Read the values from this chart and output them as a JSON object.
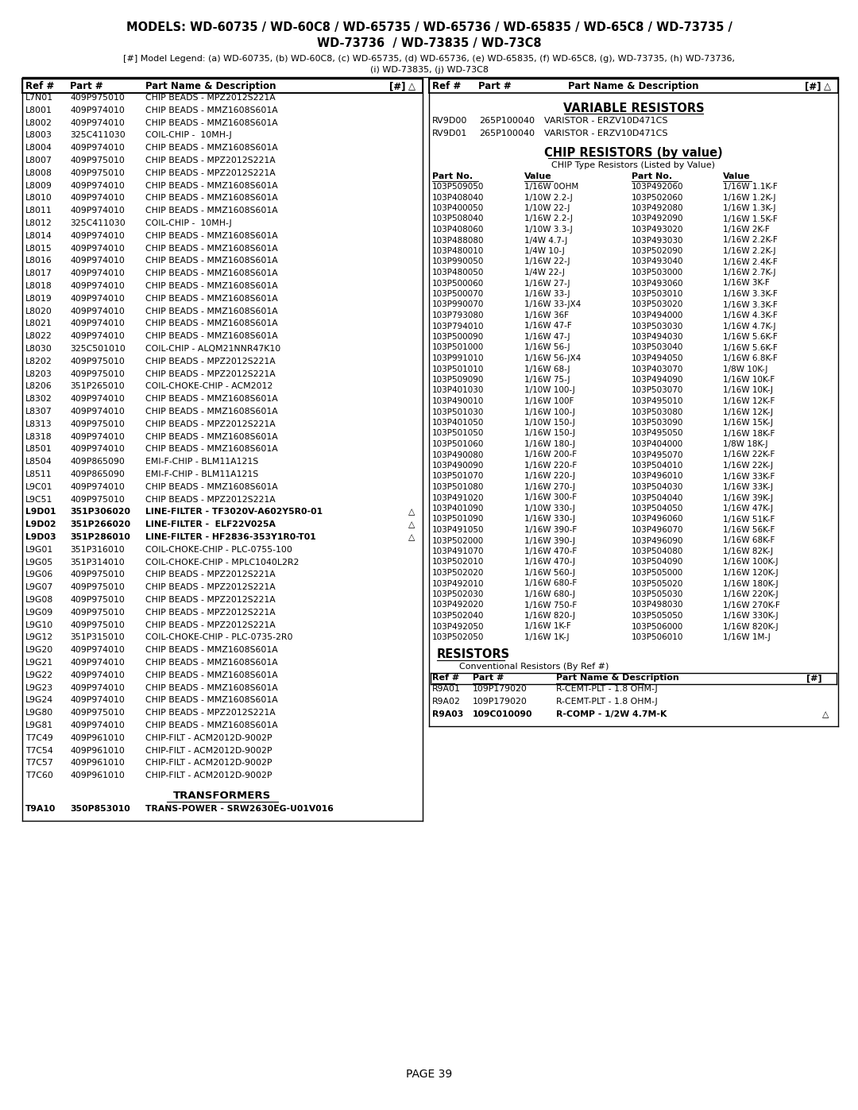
{
  "title_line1": "MODELS: WD-60735 / WD-60C8 / WD-65735 / WD-65736 / WD-65835 / WD-65C8 / WD-73735 /",
  "title_line2": "WD-73736  / WD-73835 / WD-73C8",
  "legend_line": "[#] Model Legend: (a) WD-60735, (b) WD-60C8, (c) WD-65735, (d) WD-65736, (e) WD-65835, (f) WD-65C8, (g), WD-73735, (h) WD-73736,",
  "legend_line2": "(i) WD-73835, (j) WD-73C8",
  "left_rows": [
    [
      "L7N01",
      "409P975010",
      "CHIP BEADS - MPZ2012S221A",
      "",
      "",
      ""
    ],
    [
      "L8001",
      "409P974010",
      "CHIP BEADS - MMZ1608S601A",
      "",
      "",
      ""
    ],
    [
      "L8002",
      "409P974010",
      "CHIP BEADS - MMZ1608S601A",
      "",
      "",
      ""
    ],
    [
      "L8003",
      "325C411030",
      "COIL-CHIP -  10MH-J",
      "",
      "",
      ""
    ],
    [
      "L8004",
      "409P974010",
      "CHIP BEADS - MMZ1608S601A",
      "",
      "",
      ""
    ],
    [
      "L8007",
      "409P975010",
      "CHIP BEADS - MPZ2012S221A",
      "",
      "",
      ""
    ],
    [
      "L8008",
      "409P975010",
      "CHIP BEADS - MPZ2012S221A",
      "",
      "",
      ""
    ],
    [
      "L8009",
      "409P974010",
      "CHIP BEADS - MMZ1608S601A",
      "",
      "",
      ""
    ],
    [
      "L8010",
      "409P974010",
      "CHIP BEADS - MMZ1608S601A",
      "",
      "",
      ""
    ],
    [
      "L8011",
      "409P974010",
      "CHIP BEADS - MMZ1608S601A",
      "",
      "",
      ""
    ],
    [
      "L8012",
      "325C411030",
      "COIL-CHIP -  10MH-J",
      "",
      "",
      ""
    ],
    [
      "L8014",
      "409P974010",
      "CHIP BEADS - MMZ1608S601A",
      "",
      "",
      ""
    ],
    [
      "L8015",
      "409P974010",
      "CHIP BEADS - MMZ1608S601A",
      "",
      "",
      ""
    ],
    [
      "L8016",
      "409P974010",
      "CHIP BEADS - MMZ1608S601A",
      "",
      "",
      ""
    ],
    [
      "L8017",
      "409P974010",
      "CHIP BEADS - MMZ1608S601A",
      "",
      "",
      ""
    ],
    [
      "L8018",
      "409P974010",
      "CHIP BEADS - MMZ1608S601A",
      "",
      "",
      ""
    ],
    [
      "L8019",
      "409P974010",
      "CHIP BEADS - MMZ1608S601A",
      "",
      "",
      ""
    ],
    [
      "L8020",
      "409P974010",
      "CHIP BEADS - MMZ1608S601A",
      "",
      "",
      ""
    ],
    [
      "L8021",
      "409P974010",
      "CHIP BEADS - MMZ1608S601A",
      "",
      "",
      ""
    ],
    [
      "L8022",
      "409P974010",
      "CHIP BEADS - MMZ1608S601A",
      "",
      "",
      ""
    ],
    [
      "L8030",
      "325C501010",
      "COIL-CHIP - ALQM21NNR47K10",
      "",
      "",
      ""
    ],
    [
      "L8202",
      "409P975010",
      "CHIP BEADS - MPZ2012S221A",
      "",
      "",
      ""
    ],
    [
      "L8203",
      "409P975010",
      "CHIP BEADS - MPZ2012S221A",
      "",
      "",
      ""
    ],
    [
      "L8206",
      "351P265010",
      "COIL-CHOKE-CHIP - ACM2012",
      "",
      "",
      ""
    ],
    [
      "L8302",
      "409P974010",
      "CHIP BEADS - MMZ1608S601A",
      "",
      "",
      ""
    ],
    [
      "L8307",
      "409P974010",
      "CHIP BEADS - MMZ1608S601A",
      "",
      "",
      ""
    ],
    [
      "L8313",
      "409P975010",
      "CHIP BEADS - MPZ2012S221A",
      "",
      "",
      ""
    ],
    [
      "L8318",
      "409P974010",
      "CHIP BEADS - MMZ1608S601A",
      "",
      "",
      ""
    ],
    [
      "L8501",
      "409P974010",
      "CHIP BEADS - MMZ1608S601A",
      "",
      "",
      ""
    ],
    [
      "L8504",
      "409P865090",
      "EMI-F-CHIP - BLM11A121S",
      "",
      "",
      ""
    ],
    [
      "L8511",
      "409P865090",
      "EMI-F-CHIP - BLM11A121S",
      "",
      "",
      ""
    ],
    [
      "L9C01",
      "409P974010",
      "CHIP BEADS - MMZ1608S601A",
      "",
      "",
      ""
    ],
    [
      "L9C51",
      "409P975010",
      "CHIP BEADS - MPZ2012S221A",
      "",
      "",
      ""
    ],
    [
      "L9D01",
      "351P306020",
      "LINE-FILTER - TF3020V-A602Y5R0-01",
      "",
      "△",
      "bold"
    ],
    [
      "L9D02",
      "351P266020",
      "LINE-FILTER -  ELF22V025A",
      "",
      "△",
      "bold"
    ],
    [
      "L9D03",
      "351P286010",
      "LINE-FILTER - HF2836-353Y1R0-T01",
      "",
      "△",
      "bold"
    ],
    [
      "L9G01",
      "351P316010",
      "COIL-CHOKE-CHIP - PLC-0755-100",
      "",
      "",
      ""
    ],
    [
      "L9G05",
      "351P314010",
      "COIL-CHOKE-CHIP - MPLC1040L2R2",
      "",
      "",
      ""
    ],
    [
      "L9G06",
      "409P975010",
      "CHIP BEADS - MPZ2012S221A",
      "",
      "",
      ""
    ],
    [
      "L9G07",
      "409P975010",
      "CHIP BEADS - MPZ2012S221A",
      "",
      "",
      ""
    ],
    [
      "L9G08",
      "409P975010",
      "CHIP BEADS - MPZ2012S221A",
      "",
      "",
      ""
    ],
    [
      "L9G09",
      "409P975010",
      "CHIP BEADS - MPZ2012S221A",
      "",
      "",
      ""
    ],
    [
      "L9G10",
      "409P975010",
      "CHIP BEADS - MPZ2012S221A",
      "",
      "",
      ""
    ],
    [
      "L9G12",
      "351P315010",
      "COIL-CHOKE-CHIP - PLC-0735-2R0",
      "",
      "",
      ""
    ],
    [
      "L9G20",
      "409P974010",
      "CHIP BEADS - MMZ1608S601A",
      "",
      "",
      ""
    ],
    [
      "L9G21",
      "409P974010",
      "CHIP BEADS - MMZ1608S601A",
      "",
      "",
      ""
    ],
    [
      "L9G22",
      "409P974010",
      "CHIP BEADS - MMZ1608S601A",
      "",
      "",
      ""
    ],
    [
      "L9G23",
      "409P974010",
      "CHIP BEADS - MMZ1608S601A",
      "",
      "",
      ""
    ],
    [
      "L9G24",
      "409P974010",
      "CHIP BEADS - MMZ1608S601A",
      "",
      "",
      ""
    ],
    [
      "L9G80",
      "409P975010",
      "CHIP BEADS - MPZ2012S221A",
      "",
      "",
      ""
    ],
    [
      "L9G81",
      "409P974010",
      "CHIP BEADS - MMZ1608S601A",
      "",
      "",
      ""
    ],
    [
      "T7C49",
      "409P961010",
      "CHIP-FILT - ACM2012D-9002P",
      "",
      "",
      ""
    ],
    [
      "T7C54",
      "409P961010",
      "CHIP-FILT - ACM2012D-9002P",
      "",
      "",
      ""
    ],
    [
      "T7C57",
      "409P961010",
      "CHIP-FILT - ACM2012D-9002P",
      "",
      "",
      ""
    ],
    [
      "T7C60",
      "409P961010",
      "CHIP-FILT - ACM2012D-9002P",
      "",
      "",
      ""
    ]
  ],
  "transformers_header": "TRANSFORMERS",
  "transformers_rows": [
    [
      "T9A10",
      "350P853010",
      "TRANS-POWER - SRW2630EG-U01V016"
    ]
  ],
  "right_var_header": "VARIABLE RESISTORS",
  "right_var_rows": [
    [
      "RV9D00",
      "265P100040",
      "VARISTOR - ERZV10D471CS"
    ],
    [
      "RV9D01",
      "265P100040",
      "VARISTOR - ERZV10D471CS"
    ]
  ],
  "chip_res_header": "CHIP RESISTORS (by value)",
  "chip_res_subheader": "CHIP Type Resistors (Listed by Value)",
  "chip_res_col_headers": [
    "Part No.",
    "Value",
    "Part No.",
    "Value"
  ],
  "chip_res_rows": [
    [
      "103P509050",
      "1/16W 0OHM",
      "103P492060",
      "1/16W 1.1K-F"
    ],
    [
      "103P408040",
      "1/10W 2.2-J",
      "103P502060",
      "1/16W 1.2K-J"
    ],
    [
      "103P400050",
      "1/10W 22-J",
      "103P492080",
      "1/16W 1.3K-J"
    ],
    [
      "103P508040",
      "1/16W 2.2-J",
      "103P492090",
      "1/16W 1.5K-F"
    ],
    [
      "103P408060",
      "1/10W 3.3-J",
      "103P493020",
      "1/16W 2K-F"
    ],
    [
      "103P488080",
      "1/4W 4.7-J",
      "103P493030",
      "1/16W 2.2K-F"
    ],
    [
      "103P480010",
      "1/4W 10-J",
      "103P502090",
      "1/16W 2.2K-J"
    ],
    [
      "103P990050",
      "1/16W 22-J",
      "103P493040",
      "1/16W 2.4K-F"
    ],
    [
      "103P480050",
      "1/4W 22-J",
      "103P503000",
      "1/16W 2.7K-J"
    ],
    [
      "103P500060",
      "1/16W 27-J",
      "103P493060",
      "1/16W 3K-F"
    ],
    [
      "103P500070",
      "1/16W 33-J",
      "103P503010",
      "1/16W 3.3K-F"
    ],
    [
      "103P990070",
      "1/16W 33-JX4",
      "103P503020",
      "1/16W 3.3K-F"
    ],
    [
      "103P793080",
      "1/16W 36F",
      "103P494000",
      "1/16W 4.3K-F"
    ],
    [
      "103P794010",
      "1/16W 47-F",
      "103P503030",
      "1/16W 4.7K-J"
    ],
    [
      "103P500090",
      "1/16W 47-J",
      "103P494030",
      "1/16W 5.6K-F"
    ],
    [
      "103P501000",
      "1/16W 56-J",
      "103P503040",
      "1/16W 5.6K-F"
    ],
    [
      "103P991010",
      "1/16W 56-JX4",
      "103P494050",
      "1/16W 6.8K-F"
    ],
    [
      "103P501010",
      "1/16W 68-J",
      "103P403070",
      "1/8W 10K-J"
    ],
    [
      "103P509090",
      "1/16W 75-J",
      "103P494090",
      "1/16W 10K-F"
    ],
    [
      "103P401030",
      "1/10W 100-J",
      "103P503070",
      "1/16W 10K-J"
    ],
    [
      "103P490010",
      "1/16W 100F",
      "103P495010",
      "1/16W 12K-F"
    ],
    [
      "103P501030",
      "1/16W 100-J",
      "103P503080",
      "1/16W 12K-J"
    ],
    [
      "103P401050",
      "1/10W 150-J",
      "103P503090",
      "1/16W 15K-J"
    ],
    [
      "103P501050",
      "1/16W 150-J",
      "103P495050",
      "1/16W 18K-F"
    ],
    [
      "103P501060",
      "1/16W 180-J",
      "103P404000",
      "1/8W 18K-J"
    ],
    [
      "103P490080",
      "1/16W 200-F",
      "103P495070",
      "1/16W 22K-F"
    ],
    [
      "103P490090",
      "1/16W 220-F",
      "103P504010",
      "1/16W 22K-J"
    ],
    [
      "103P501070",
      "1/16W 220-J",
      "103P496010",
      "1/16W 33K-F"
    ],
    [
      "103P501080",
      "1/16W 270-J",
      "103P504030",
      "1/16W 33K-J"
    ],
    [
      "103P491020",
      "1/16W 300-F",
      "103P504040",
      "1/16W 39K-J"
    ],
    [
      "103P401090",
      "1/10W 330-J",
      "103P504050",
      "1/16W 47K-J"
    ],
    [
      "103P501090",
      "1/16W 330-J",
      "103P496060",
      "1/16W 51K-F"
    ],
    [
      "103P491050",
      "1/16W 390-F",
      "103P496070",
      "1/16W 56K-F"
    ],
    [
      "103P502000",
      "1/16W 390-J",
      "103P496090",
      "1/16W 68K-F"
    ],
    [
      "103P491070",
      "1/16W 470-F",
      "103P504080",
      "1/16W 82K-J"
    ],
    [
      "103P502010",
      "1/16W 470-J",
      "103P504090",
      "1/16W 100K-J"
    ],
    [
      "103P502020",
      "1/16W 560-J",
      "103P505000",
      "1/16W 120K-J"
    ],
    [
      "103P492010",
      "1/16W 680-F",
      "103P505020",
      "1/16W 180K-J"
    ],
    [
      "103P502030",
      "1/16W 680-J",
      "103P505030",
      "1/16W 220K-J"
    ],
    [
      "103P492020",
      "1/16W 750-F",
      "103P498030",
      "1/16W 270K-F"
    ],
    [
      "103P502040",
      "1/16W 820-J",
      "103P505050",
      "1/16W 330K-J"
    ],
    [
      "103P492050",
      "1/16W 1K-F",
      "103P506000",
      "1/16W 820K-J"
    ],
    [
      "103P502050",
      "1/16W 1K-J",
      "103P506010",
      "1/16W 1M-J"
    ]
  ],
  "resistors_header": "RESISTORS",
  "resistors_subheader": "Conventional Resistors (By Ref #)",
  "resistors_col_headers": [
    "Ref #",
    "Part #",
    "Part Name & Description",
    "[#]"
  ],
  "resistors_rows": [
    [
      "R9A01",
      "109P179020",
      "R-CEMT-PLT - 1.8 OHM-J",
      "",
      ""
    ],
    [
      "R9A02",
      "109P179020",
      "R-CEMT-PLT - 1.8 OHM-J",
      "",
      ""
    ],
    [
      "R9A03",
      "109C010090",
      "R-COMP - 1/2W 4.7M-K",
      "",
      "△",
      "bold"
    ]
  ],
  "page_number": "PAGE 39",
  "bg_color": "#ffffff"
}
